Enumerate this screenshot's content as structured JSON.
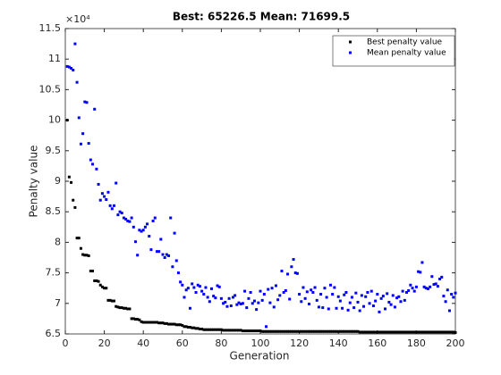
{
  "chart_data": {
    "type": "scatter",
    "title": "Best: 65226.5 Mean: 71699.5",
    "x_label": "Generation",
    "y_label": "Penalty value",
    "y_multiplier": "×10⁴",
    "legend": "upper right",
    "box": true,
    "xlim": [
      0,
      200
    ],
    "xticks": [
      0,
      20,
      40,
      60,
      80,
      100,
      120,
      140,
      160,
      180,
      200
    ],
    "ylim": [
      65000,
      115000
    ],
    "yticks": [
      {
        "value": 65000,
        "label": "6.5"
      },
      {
        "value": 70000,
        "label": "7"
      },
      {
        "value": 75000,
        "label": "7.5"
      },
      {
        "value": 80000,
        "label": "8"
      },
      {
        "value": 85000,
        "label": "8.5"
      },
      {
        "value": 90000,
        "label": "9"
      },
      {
        "value": 95000,
        "label": "9.5"
      },
      {
        "value": 100000,
        "label": "10"
      },
      {
        "value": 105000,
        "label": "10.5"
      },
      {
        "value": 110000,
        "label": "11"
      },
      {
        "value": 115000,
        "label": "11.5"
      }
    ],
    "x": [
      1,
      2,
      3,
      4,
      5,
      6,
      7,
      8,
      9,
      10,
      11,
      12,
      13,
      14,
      15,
      16,
      17,
      18,
      19,
      20,
      21,
      22,
      23,
      24,
      25,
      26,
      27,
      28,
      29,
      30,
      31,
      32,
      33,
      34,
      35,
      36,
      37,
      38,
      39,
      40,
      41,
      42,
      43,
      44,
      45,
      46,
      47,
      48,
      49,
      50,
      51,
      52,
      53,
      54,
      55,
      56,
      57,
      58,
      59,
      60,
      61,
      62,
      63,
      64,
      65,
      66,
      67,
      68,
      69,
      70,
      71,
      72,
      73,
      74,
      75,
      76,
      77,
      78,
      79,
      80,
      81,
      82,
      83,
      84,
      85,
      86,
      87,
      88,
      89,
      90,
      91,
      92,
      93,
      94,
      95,
      96,
      97,
      98,
      99,
      100,
      101,
      102,
      103,
      104,
      105,
      106,
      107,
      108,
      109,
      110,
      111,
      112,
      113,
      114,
      115,
      116,
      117,
      118,
      119,
      120,
      121,
      122,
      123,
      124,
      125,
      126,
      127,
      128,
      129,
      130,
      131,
      132,
      133,
      134,
      135,
      136,
      137,
      138,
      139,
      140,
      141,
      142,
      143,
      144,
      145,
      146,
      147,
      148,
      149,
      150,
      151,
      152,
      153,
      154,
      155,
      156,
      157,
      158,
      159,
      160,
      161,
      162,
      163,
      164,
      165,
      166,
      167,
      168,
      169,
      170,
      171,
      172,
      173,
      174,
      175,
      176,
      177,
      178,
      179,
      180,
      181,
      182,
      183,
      184,
      185,
      186,
      187,
      188,
      189,
      190,
      191,
      192,
      193,
      194,
      195,
      196,
      197,
      198,
      199,
      200
    ],
    "series": [
      {
        "name": "Best penalty value",
        "color": "#000000",
        "values": [
          100000,
          90700,
          89800,
          86900,
          85700,
          80700,
          80700,
          79000,
          78000,
          77900,
          77900,
          77800,
          75300,
          75300,
          73700,
          73700,
          73600,
          73000,
          72700,
          72500,
          72500,
          70500,
          70500,
          70400,
          70400,
          69500,
          69400,
          69300,
          69300,
          69200,
          69200,
          69100,
          69100,
          67500,
          67500,
          67400,
          67400,
          67300,
          67000,
          66900,
          66900,
          66900,
          66900,
          66900,
          66900,
          66900,
          66900,
          66800,
          66800,
          66800,
          66700,
          66700,
          66600,
          66600,
          66600,
          66600,
          66500,
          66500,
          66500,
          66400,
          66200,
          66200,
          66100,
          66100,
          66000,
          66000,
          65900,
          65900,
          65800,
          65800,
          65700,
          65700,
          65700,
          65700,
          65700,
          65700,
          65700,
          65700,
          65700,
          65700,
          65600,
          65600,
          65600,
          65600,
          65600,
          65600,
          65600,
          65600,
          65600,
          65600,
          65500,
          65500,
          65500,
          65500,
          65500,
          65500,
          65500,
          65500,
          65500,
          65500,
          65400,
          65400,
          65400,
          65400,
          65400,
          65400,
          65400,
          65400,
          65400,
          65400,
          65400,
          65400,
          65400,
          65400,
          65400,
          65400,
          65400,
          65400,
          65400,
          65400,
          65400,
          65400,
          65400,
          65400,
          65400,
          65400,
          65400,
          65400,
          65400,
          65400,
          65400,
          65400,
          65400,
          65400,
          65400,
          65400,
          65400,
          65400,
          65400,
          65400,
          65400,
          65400,
          65400,
          65400,
          65400,
          65400,
          65400,
          65400,
          65400,
          65400,
          65300,
          65300,
          65300,
          65300,
          65300,
          65300,
          65300,
          65300,
          65300,
          65300,
          65300,
          65300,
          65300,
          65300,
          65300,
          65300,
          65300,
          65300,
          65300,
          65300,
          65300,
          65300,
          65300,
          65300,
          65300,
          65300,
          65300,
          65300,
          65300,
          65300,
          65300,
          65300,
          65300,
          65300,
          65300,
          65300,
          65300,
          65300,
          65300,
          65300,
          65300,
          65300,
          65300,
          65300,
          65300,
          65300,
          65300,
          65300,
          65300,
          65226.5
        ]
      },
      {
        "name": "Mean penalty value",
        "color": "#0000ff",
        "values": [
          108800,
          108700,
          108500,
          108200,
          112500,
          106200,
          100400,
          96100,
          97800,
          103000,
          102900,
          96200,
          93500,
          92800,
          101800,
          92000,
          89500,
          86900,
          88000,
          87500,
          87000,
          88200,
          86000,
          85500,
          86000,
          89700,
          84500,
          85000,
          84800,
          84000,
          83800,
          83500,
          83400,
          84000,
          82500,
          80100,
          77900,
          82000,
          81800,
          82000,
          82500,
          83000,
          81000,
          78800,
          83500,
          84000,
          78500,
          78500,
          80500,
          78000,
          77500,
          78000,
          77800,
          84000,
          76000,
          81500,
          77000,
          75000,
          73500,
          73000,
          71000,
          72200,
          72500,
          69200,
          73200,
          72600,
          71800,
          73000,
          72800,
          72000,
          71500,
          72600,
          71000,
          70300,
          72400,
          71200,
          70900,
          72900,
          72700,
          70800,
          70000,
          70200,
          69500,
          70800,
          69600,
          71000,
          71300,
          69800,
          70100,
          69900,
          70000,
          72000,
          69300,
          70800,
          71800,
          70000,
          70400,
          69000,
          70100,
          72000,
          70500,
          71500,
          66200,
          72300,
          70100,
          72500,
          69400,
          72900,
          70600,
          71300,
          75300,
          71800,
          72100,
          74800,
          70700,
          76000,
          77200,
          75000,
          74900,
          71500,
          70300,
          72600,
          70800,
          71900,
          69900,
          72200,
          71800,
          72600,
          70500,
          69400,
          71500,
          69300,
          72500,
          71000,
          69100,
          73000,
          71500,
          72600,
          69200,
          71100,
          70400,
          69200,
          71400,
          71800,
          68900,
          70100,
          71000,
          69300,
          71700,
          70200,
          68800,
          71300,
          69500,
          71100,
          71800,
          70000,
          72000,
          69600,
          70400,
          71500,
          68600,
          70800,
          71200,
          69100,
          71600,
          70200,
          69800,
          71300,
          69400,
          70900,
          71100,
          70300,
          72000,
          70500,
          71800,
          72100,
          73000,
          72500,
          72000,
          72700,
          75200,
          75100,
          76700,
          72700,
          72500,
          72400,
          72700,
          74400,
          73100,
          73200,
          72800,
          74000,
          74300,
          71200,
          70300,
          72200,
          68800,
          71500,
          71000,
          71699.5
        ]
      }
    ]
  }
}
